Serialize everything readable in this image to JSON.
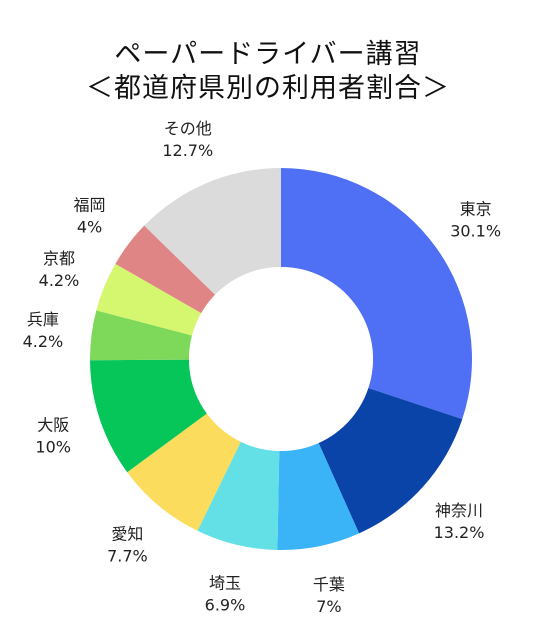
{
  "chart_data": {
    "type": "pie",
    "title_line1": "ペーパードライバー講習",
    "title_line2": "＜都道府県別の利用者割合＞",
    "unit": "%",
    "slices": [
      {
        "label": "東京",
        "value": 30.1,
        "value_label": "30.1%",
        "color": "#4f6ff5"
      },
      {
        "label": "神奈川",
        "value": 13.2,
        "value_label": "13.2%",
        "color": "#0a44a8"
      },
      {
        "label": "千葉",
        "value": 7,
        "value_label": "7%",
        "color": "#3bb4f7"
      },
      {
        "label": "埼玉",
        "value": 6.9,
        "value_label": "6.9%",
        "color": "#63dfe6"
      },
      {
        "label": "愛知",
        "value": 7.7,
        "value_label": "7.7%",
        "color": "#fbdc5c"
      },
      {
        "label": "大阪",
        "value": 10,
        "value_label": "10%",
        "color": "#06c65a"
      },
      {
        "label": "兵庫",
        "value": 4.2,
        "value_label": "4.2%",
        "color": "#7ed85a"
      },
      {
        "label": "京都",
        "value": 4.2,
        "value_label": "4.2%",
        "color": "#d5f76f"
      },
      {
        "label": "福岡",
        "value": 4,
        "value_label": "4%",
        "color": "#e08585"
      },
      {
        "label": "その他",
        "value": 12.7,
        "value_label": "12.7%",
        "color": "#dbdbdb"
      }
    ]
  }
}
